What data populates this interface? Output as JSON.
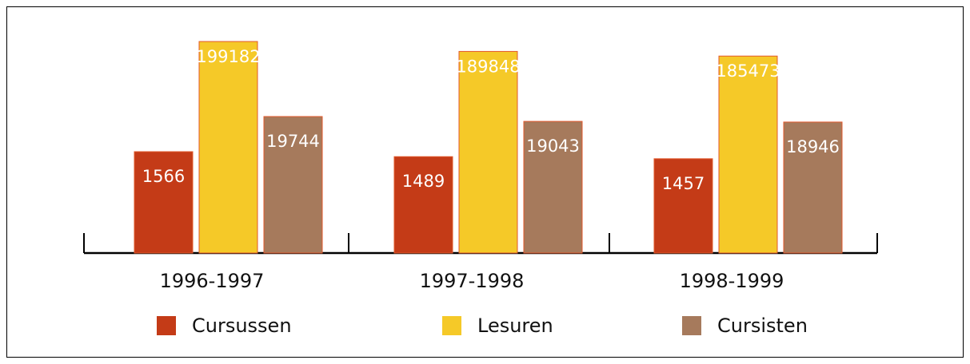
{
  "chart_data": {
    "type": "bar",
    "categories": [
      "1996-1997",
      "1997-1998",
      "1998-1999"
    ],
    "series": [
      {
        "name": "Cursussen",
        "color": "#c43b17",
        "values": [
          1566,
          1489,
          1457
        ]
      },
      {
        "name": "Lesuren",
        "color": "#f5c928",
        "values": [
          199182,
          189848,
          185473
        ]
      },
      {
        "name": "Cursisten",
        "color": "#a67a5c",
        "values": [
          19744,
          19043,
          18946
        ]
      }
    ]
  }
}
